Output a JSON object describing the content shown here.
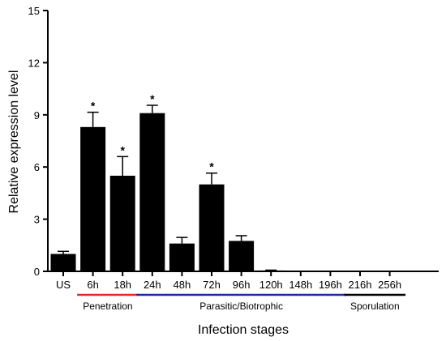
{
  "chart_data": {
    "type": "bar",
    "xlabel": "Infection stages",
    "ylabel": "Relative expression level",
    "ylim": [
      0,
      15
    ],
    "yticks": [
      0,
      3,
      6,
      9,
      12,
      15
    ],
    "categories": [
      "US",
      "6h",
      "18h",
      "24h",
      "48h",
      "72h",
      "96h",
      "120h",
      "148h",
      "196h",
      "216h",
      "256h"
    ],
    "values": [
      1.0,
      8.3,
      5.5,
      9.1,
      1.6,
      5.0,
      1.75,
      0.05,
      0.02,
      0.02,
      0.02,
      0.03
    ],
    "errors": [
      0.15,
      0.85,
      1.1,
      0.45,
      0.35,
      0.65,
      0.3,
      0.02,
      0.0,
      0.0,
      0.0,
      0.0
    ],
    "significance": [
      "",
      "*",
      "*",
      "*",
      "",
      "*",
      "",
      "",
      "",
      "",
      "",
      ""
    ],
    "bar_color": "#000000",
    "stages": [
      {
        "label": "Penetration",
        "from": "6h",
        "to": "18h",
        "color": "#e8262a"
      },
      {
        "label": "Parasitic/Biotrophic",
        "from": "24h",
        "to": "196h",
        "color": "#1f2a9c"
      },
      {
        "label": "Sporulation",
        "from": "216h",
        "to": "256h",
        "color": "#000000"
      }
    ]
  }
}
